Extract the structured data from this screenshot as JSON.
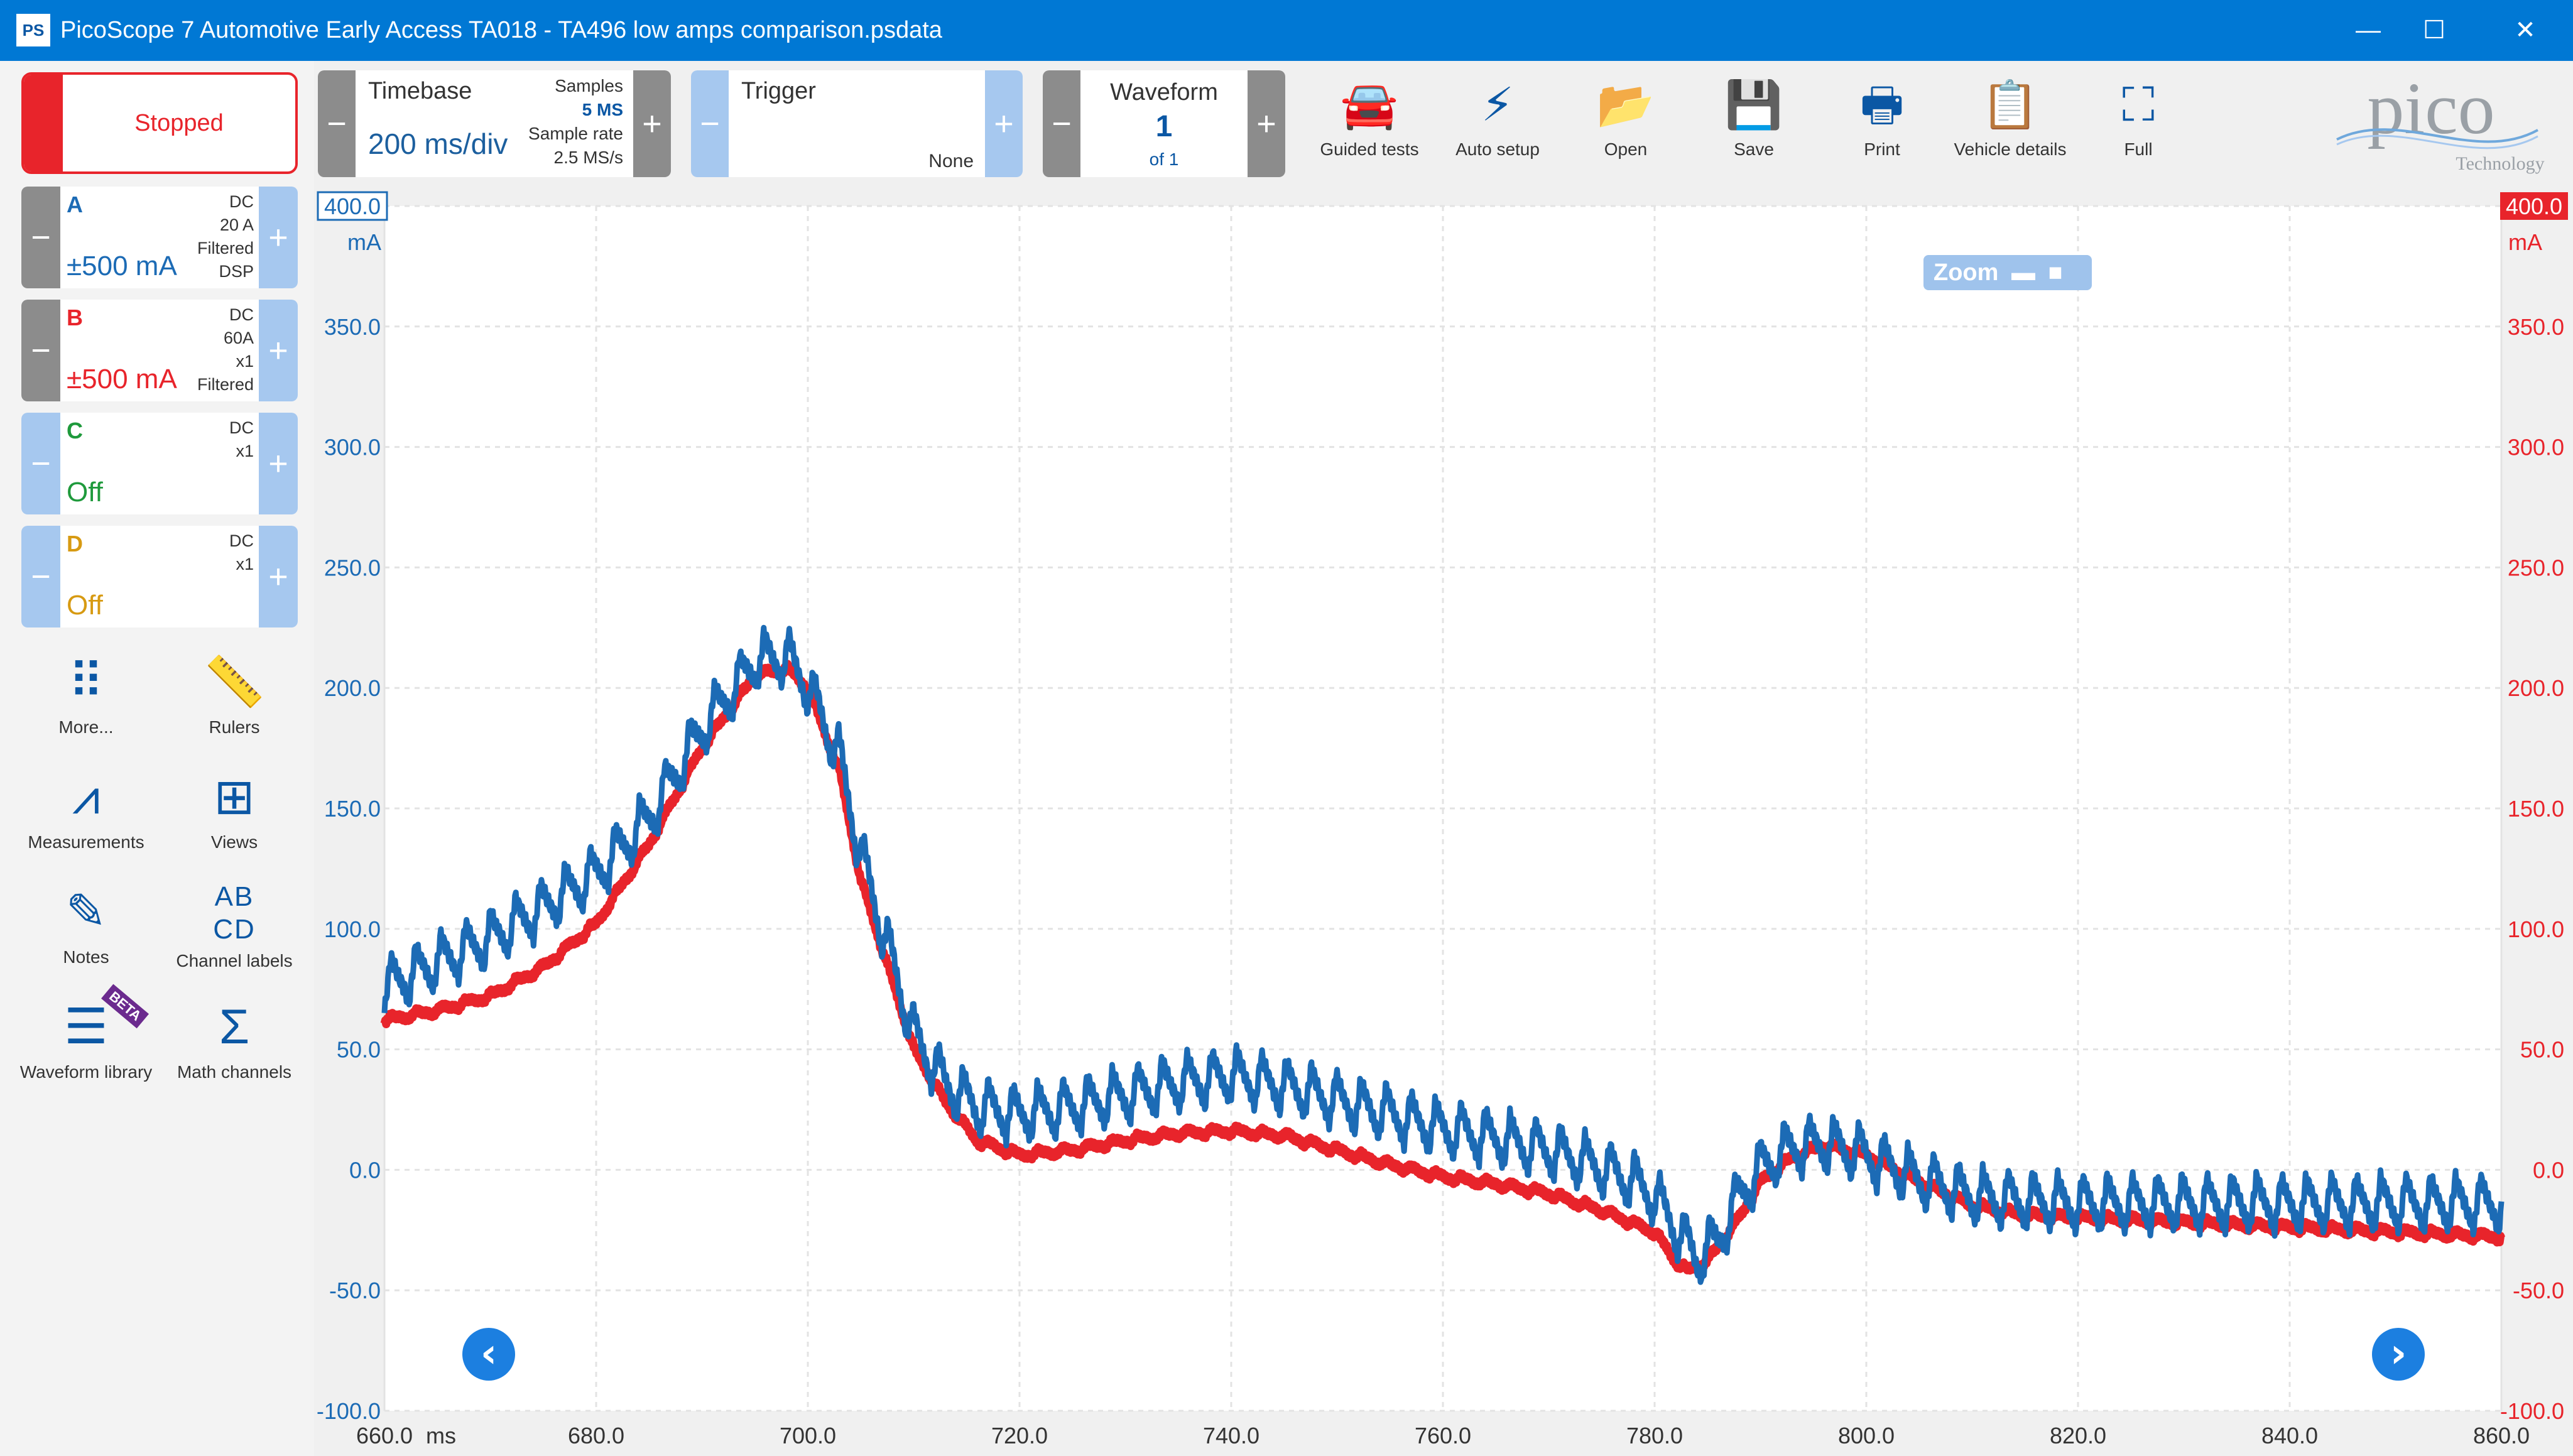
{
  "window": {
    "title": "PicoScope 7 Automotive Early Access TA018 - TA496 low amps comparison.psdata",
    "icon_label": "PS",
    "min": "—",
    "max": "☐",
    "close": "✕"
  },
  "run_state": {
    "label": "Stopped"
  },
  "channels": [
    {
      "name": "A",
      "range": "±500 mA",
      "info": [
        "DC",
        "20 A",
        "Filtered",
        "DSP"
      ],
      "color": "#1c6bb5"
    },
    {
      "name": "B",
      "range": "±500 mA",
      "info": [
        "DC",
        "60A",
        "x1",
        "Filtered"
      ],
      "color": "#e8242b"
    },
    {
      "name": "C",
      "range": "Off",
      "info": [
        "DC",
        "x1"
      ],
      "color": "#1f9a3c"
    },
    {
      "name": "D",
      "range": "Off",
      "info": [
        "DC",
        "x1"
      ],
      "color": "#d79a12"
    }
  ],
  "tools": [
    {
      "label": "More...",
      "icon": "dots-grid-icon",
      "glyph": "⠿"
    },
    {
      "label": "Rulers",
      "icon": "ruler-icon",
      "glyph": "📏"
    },
    {
      "label": "Measurements",
      "icon": "compass-icon",
      "glyph": "⩘"
    },
    {
      "label": "Views",
      "icon": "grid-view-icon",
      "glyph": "⊞"
    },
    {
      "label": "Notes",
      "icon": "notes-icon",
      "glyph": "✎"
    },
    {
      "label": "Channel labels",
      "icon": "channel-labels-icon",
      "glyph": "ABCD"
    },
    {
      "label": "Waveform library",
      "icon": "waveform-library-icon",
      "glyph": "☰"
    },
    {
      "label": "Math channels",
      "icon": "sigma-icon",
      "glyph": "Σ"
    }
  ],
  "beta_label": "BETA",
  "timebase": {
    "label": "Timebase",
    "value": "200 ms/div",
    "samples_label": "Samples",
    "samples_value": "5 MS",
    "rate_label": "Sample rate",
    "rate_value": "2.5 MS/s"
  },
  "trigger": {
    "label": "Trigger",
    "mode": "None"
  },
  "waveform": {
    "label": "Waveform",
    "value": "1",
    "of": "of 1"
  },
  "toolbar": [
    {
      "label": "Guided tests",
      "icon": "car-icon",
      "glyph": "🚘"
    },
    {
      "label": "Auto setup",
      "icon": "wand-icon",
      "glyph": "⚡"
    },
    {
      "label": "Open",
      "icon": "folder-icon",
      "glyph": "📂"
    },
    {
      "label": "Save",
      "icon": "save-icon",
      "glyph": "💾"
    },
    {
      "label": "Print",
      "icon": "printer-icon",
      "glyph": "🖶"
    },
    {
      "label": "Vehicle details",
      "icon": "clipboard-icon",
      "glyph": "📋"
    },
    {
      "label": "Full",
      "icon": "fullscreen-icon",
      "glyph": "⛶"
    }
  ],
  "logo": {
    "text": "pico",
    "sub": "Technology"
  },
  "zoom": {
    "label": "Zoom",
    "minimize": "▬",
    "restore": "■",
    "close": "✕"
  },
  "chart_data": {
    "type": "line",
    "xlabel": "ms",
    "xlim": [
      660,
      860
    ],
    "x_ticks": [
      660,
      680,
      700,
      720,
      740,
      760,
      780,
      800,
      820,
      840,
      860
    ],
    "x_tick_labels": [
      "660.0",
      "680.0",
      "700.0",
      "720.0",
      "740.0",
      "760.0",
      "780.0",
      "800.0",
      "820.0",
      "840.0",
      "860.0"
    ],
    "ylabel_left": "mA",
    "ylabel_right": "mA",
    "ylim": [
      -100,
      400
    ],
    "y_ticks": [
      400,
      350,
      300,
      250,
      200,
      150,
      100,
      50,
      0,
      -50,
      -100
    ],
    "y_tick_labels": [
      "400.0",
      "350.0",
      "300.0",
      "250.0",
      "200.0",
      "150.0",
      "100.0",
      "50.0",
      "0.0",
      "-50.0",
      "-100.0"
    ],
    "grid": true,
    "series": [
      {
        "name": "A",
        "color": "#1c6bb5",
        "x": [
          660,
          665,
          670,
          675,
          680,
          685,
          690,
          695,
          698,
          700,
          703,
          705,
          708,
          710,
          713,
          716,
          720,
          725,
          730,
          735,
          740,
          745,
          750,
          755,
          760,
          765,
          770,
          775,
          778,
          780,
          782,
          784,
          786,
          788,
          790,
          793,
          796,
          800,
          805,
          810,
          815,
          820,
          830,
          840,
          850,
          858,
          860
        ],
        "y": [
          75,
          85,
          95,
          108,
          122,
          145,
          182,
          210,
          212,
          200,
          170,
          130,
          85,
          55,
          35,
          25,
          22,
          25,
          30,
          35,
          38,
          34,
          28,
          22,
          16,
          12,
          7,
          0,
          -6,
          -12,
          -25,
          -38,
          -30,
          -12,
          0,
          8,
          10,
          5,
          -5,
          -12,
          -14,
          -15,
          -15,
          -15,
          -15,
          -15,
          -15
        ],
        "ripple_amplitude": 22
      },
      {
        "name": "B",
        "color": "#e8242b",
        "x": [
          660,
          665,
          670,
          675,
          680,
          685,
          690,
          695,
          698,
          700,
          703,
          705,
          708,
          710,
          713,
          716,
          720,
          725,
          730,
          735,
          740,
          745,
          750,
          755,
          760,
          765,
          770,
          775,
          780,
          782,
          783,
          785,
          788,
          790,
          793,
          796,
          800,
          805,
          810,
          815,
          820,
          830,
          840,
          850,
          860
        ],
        "y": [
          62,
          66,
          72,
          84,
          102,
          135,
          175,
          205,
          208,
          200,
          165,
          120,
          78,
          50,
          28,
          12,
          6,
          8,
          12,
          15,
          16,
          14,
          8,
          2,
          -3,
          -6,
          -10,
          -17,
          -26,
          -38,
          -42,
          -38,
          -20,
          -5,
          5,
          10,
          6,
          -5,
          -15,
          -19,
          -20,
          -22,
          -24,
          -26,
          -28
        ],
        "ripple_amplitude": 3
      }
    ]
  }
}
